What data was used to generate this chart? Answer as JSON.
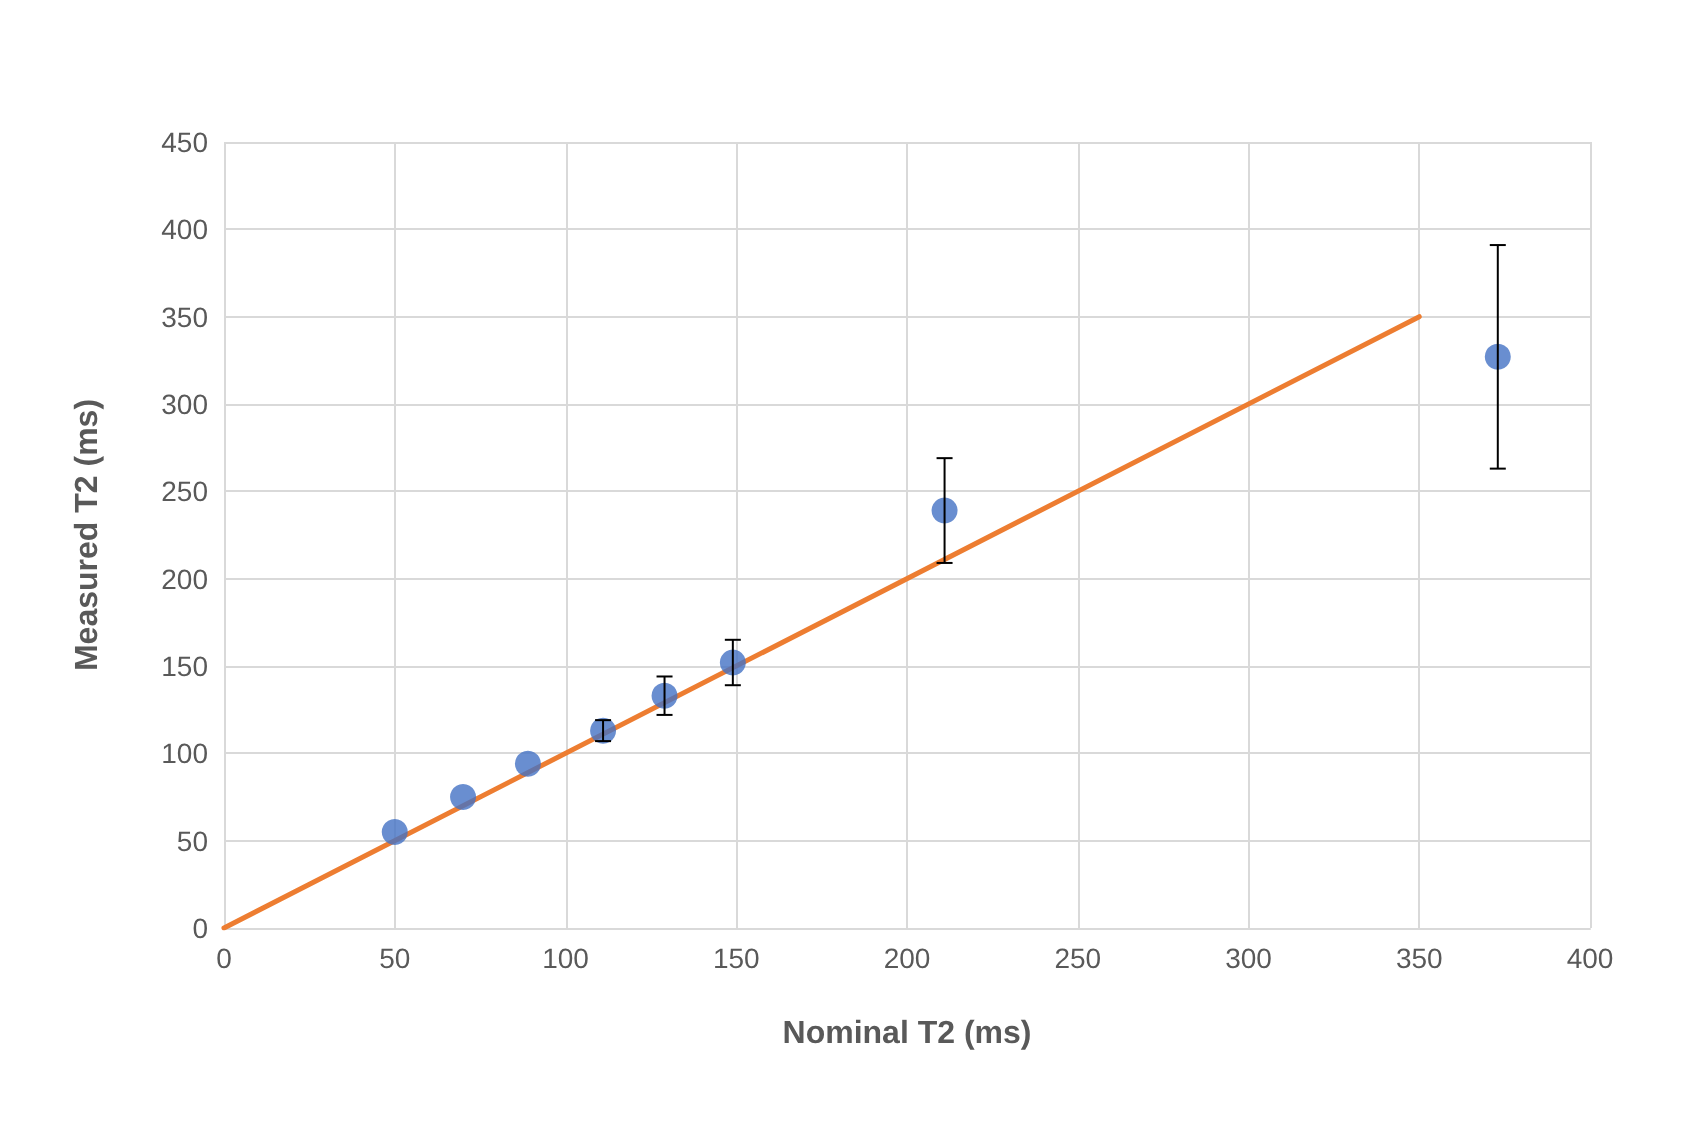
{
  "chart_data": {
    "type": "scatter",
    "xlabel": "Nominal T2 (ms)",
    "ylabel": "Measured T2 (ms)",
    "xlim": [
      0,
      400
    ],
    "xticks": [
      0,
      50,
      100,
      150,
      200,
      250,
      300,
      350,
      400
    ],
    "ylim": [
      0,
      450
    ],
    "yticks": [
      0,
      50,
      100,
      150,
      200,
      250,
      300,
      350,
      400,
      450
    ],
    "grid": true,
    "series": [
      {
        "type": "line",
        "x": [
          0,
          350
        ],
        "values": [
          0,
          350
        ],
        "color": "#ed7d31",
        "marker": "none",
        "line_style": "solid"
      },
      {
        "x": [
          50,
          70,
          89,
          111,
          129,
          149,
          211,
          373
        ],
        "values": [
          55,
          75,
          94,
          113,
          133,
          152,
          239,
          327
        ],
        "errors": [
          null,
          null,
          null,
          6,
          11,
          13,
          30,
          64
        ],
        "color": "#4472c4",
        "marker": "circle"
      }
    ]
  }
}
